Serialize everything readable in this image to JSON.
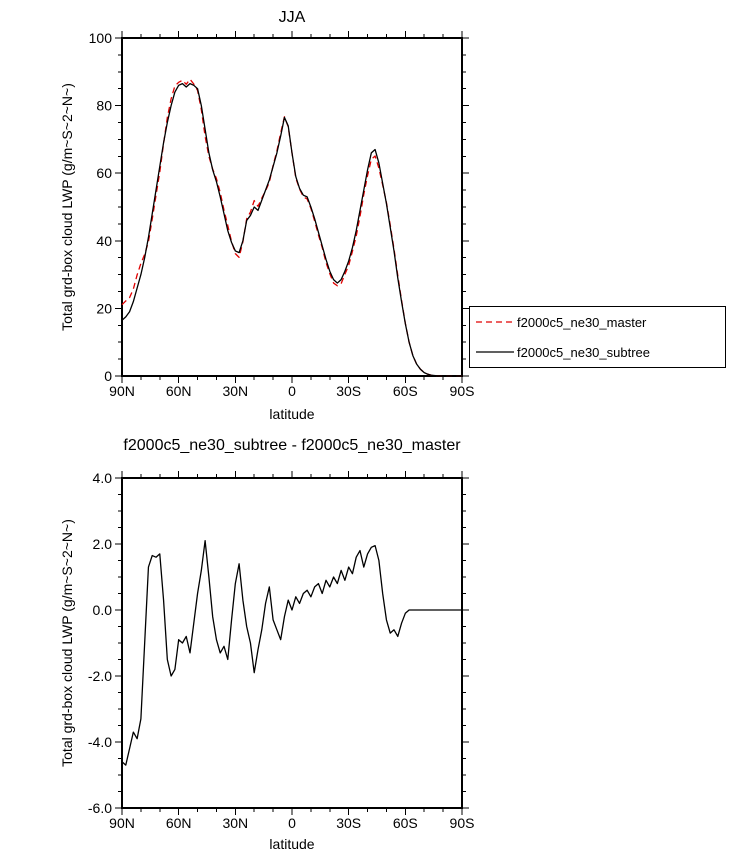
{
  "figure": {
    "background": "#ffffff",
    "season": "JJA"
  },
  "colors": {
    "master_line": "#e00000",
    "subtree_line": "#000000",
    "frame": "#000000"
  },
  "chart_data": [
    {
      "id": "lwp-by-latitude",
      "type": "line",
      "title": "JJA",
      "xlabel": "latitude",
      "ylabel": "Total grd-box cloud LWP (g/m~S~2~N~)",
      "xlim": [
        90,
        -90
      ],
      "ylim": [
        0,
        100
      ],
      "grid": false,
      "xticks": {
        "values": [
          90,
          60,
          30,
          0,
          -30,
          -60,
          -90
        ],
        "labels": [
          "90N",
          "60N",
          "30N",
          "0",
          "30S",
          "60S",
          "90S"
        ],
        "minor_step": 10
      },
      "yticks": {
        "values": [
          0,
          20,
          40,
          60,
          80,
          100
        ],
        "labels": [
          "0",
          "20",
          "40",
          "60",
          "80",
          "100"
        ],
        "minor_step": 5
      },
      "legend": {
        "show": true,
        "position": "outside-right-middle"
      },
      "x": [
        90,
        88,
        86,
        84,
        82,
        80,
        78,
        76,
        74,
        72,
        70,
        68,
        66,
        64,
        62,
        60,
        58,
        56,
        54,
        52,
        50,
        48,
        46,
        44,
        42,
        40,
        38,
        36,
        34,
        32,
        30,
        28,
        26,
        24,
        22,
        20,
        18,
        16,
        14,
        12,
        10,
        8,
        6,
        4,
        2,
        0,
        -2,
        -4,
        -6,
        -8,
        -10,
        -12,
        -14,
        -16,
        -18,
        -20,
        -22,
        -24,
        -26,
        -28,
        -30,
        -32,
        -34,
        -36,
        -38,
        -40,
        -42,
        -44,
        -46,
        -48,
        -50,
        -52,
        -54,
        -56,
        -58,
        -60,
        -62,
        -64,
        -66,
        -68,
        -70,
        -72,
        -74,
        -76,
        -78,
        -80,
        -82,
        -84,
        -86,
        -88,
        -90
      ],
      "series": [
        {
          "name": "f2000c5_ne30_master",
          "color": "#e00000",
          "style": "dashed",
          "values": [
            21.1,
            22.2,
            23.2,
            25.7,
            29.9,
            33.3,
            36.0,
            39.7,
            46.4,
            53.4,
            60.3,
            68.7,
            76.5,
            82.0,
            85.8,
            86.9,
            87.5,
            86.3,
            87.8,
            86.4,
            84.5,
            78.8,
            70.9,
            65.0,
            61.2,
            58.4,
            54.3,
            49.1,
            44.5,
            39.8,
            36.2,
            35.1,
            39.7,
            46.5,
            48.5,
            51.9,
            50.2,
            52.6,
            54.8,
            57.3,
            62.3,
            66.6,
            71.9,
            76.7,
            73.7,
            66.0,
            58.6,
            55.3,
            53.0,
            52.4,
            49.6,
            45.8,
            41.7,
            38.0,
            33.6,
            30.3,
            27.5,
            26.7,
            27.3,
            30.1,
            32.7,
            36.9,
            41.4,
            47.2,
            53.7,
            59.3,
            64.1,
            65.1,
            61.5,
            56.5,
            51.3,
            44.7,
            37.6,
            29.8,
            22.4,
            15.6,
            10,
            6,
            3.5,
            2,
            1,
            0.5,
            0.2,
            0.1,
            0,
            0,
            0,
            0,
            0,
            0,
            0
          ]
        },
        {
          "name": "f2000c5_ne30_subtree",
          "color": "#000000",
          "style": "solid",
          "values": [
            16.5,
            17.5,
            19,
            22,
            26,
            30,
            35,
            41,
            48,
            55,
            62,
            69,
            75,
            80,
            84,
            86,
            86.5,
            85.5,
            86.5,
            86,
            85,
            80,
            73,
            66,
            61,
            57.5,
            53,
            48,
            43,
            39.5,
            37,
            36.5,
            40,
            46,
            47.5,
            50,
            49,
            52,
            55,
            58,
            62,
            66,
            71,
            76.5,
            74,
            66,
            59,
            55.5,
            53.5,
            53,
            50,
            46.5,
            42.5,
            38.5,
            34.5,
            31,
            28.5,
            27.5,
            28.5,
            31,
            34,
            38,
            43,
            49,
            55,
            61,
            66,
            67,
            63,
            57,
            51,
            44,
            37,
            29,
            22,
            15.5,
            10,
            6,
            3.5,
            2,
            1,
            0.5,
            0.2,
            0.1,
            0,
            0,
            0,
            0,
            0,
            0,
            0
          ]
        }
      ]
    },
    {
      "id": "lwp-difference-by-latitude",
      "type": "line",
      "title": "f2000c5_ne30_subtree - f2000c5_ne30_master",
      "xlabel": "latitude",
      "ylabel": "Total grd-box cloud LWP (g/m~S~2~N~)",
      "xlim": [
        90,
        -90
      ],
      "ylim": [
        -6.0,
        4.0
      ],
      "grid": false,
      "xticks": {
        "values": [
          90,
          60,
          30,
          0,
          -30,
          -60,
          -90
        ],
        "labels": [
          "90N",
          "60N",
          "30N",
          "0",
          "30S",
          "60S",
          "90S"
        ],
        "minor_step": 10
      },
      "yticks": {
        "values": [
          -6,
          -4,
          -2,
          0,
          2,
          4
        ],
        "labels": [
          "-6.0",
          "-4.0",
          "-2.0",
          "0.0",
          "2.0",
          "4.0"
        ],
        "minor_step": 0.5
      },
      "legend": {
        "show": false
      },
      "x": [
        90,
        88,
        86,
        84,
        82,
        80,
        78,
        76,
        74,
        72,
        70,
        68,
        66,
        64,
        62,
        60,
        58,
        56,
        54,
        52,
        50,
        48,
        46,
        44,
        42,
        40,
        38,
        36,
        34,
        32,
        30,
        28,
        26,
        24,
        22,
        20,
        18,
        16,
        14,
        12,
        10,
        8,
        6,
        4,
        2,
        0,
        -2,
        -4,
        -6,
        -8,
        -10,
        -12,
        -14,
        -16,
        -18,
        -20,
        -22,
        -24,
        -26,
        -28,
        -30,
        -32,
        -34,
        -36,
        -38,
        -40,
        -42,
        -44,
        -46,
        -48,
        -50,
        -52,
        -54,
        -56,
        -58,
        -60,
        -62,
        -64,
        -66,
        -68,
        -70,
        -72,
        -74,
        -76,
        -78,
        -80,
        -82,
        -84,
        -86,
        -88,
        -90
      ],
      "series": [
        {
          "name": "f2000c5_ne30_subtree - f2000c5_ne30_master",
          "color": "#000000",
          "style": "solid",
          "values": [
            -4.6,
            -4.7,
            -4.2,
            -3.7,
            -3.9,
            -3.3,
            -1.0,
            1.3,
            1.65,
            1.6,
            1.7,
            0.3,
            -1.5,
            -2.0,
            -1.8,
            -0.9,
            -1.0,
            -0.8,
            -1.3,
            -0.4,
            0.5,
            1.2,
            2.1,
            1.0,
            -0.2,
            -0.9,
            -1.3,
            -1.1,
            -1.5,
            -0.3,
            0.8,
            1.4,
            0.3,
            -0.5,
            -1.0,
            -1.9,
            -1.2,
            -0.6,
            0.2,
            0.7,
            -0.3,
            -0.6,
            -0.9,
            -0.2,
            0.3,
            0.0,
            0.4,
            0.2,
            0.5,
            0.6,
            0.4,
            0.7,
            0.8,
            0.5,
            0.9,
            0.7,
            1.0,
            0.8,
            1.2,
            0.9,
            1.3,
            1.1,
            1.6,
            1.8,
            1.3,
            1.7,
            1.9,
            1.95,
            1.5,
            0.5,
            -0.3,
            -0.7,
            -0.6,
            -0.8,
            -0.4,
            -0.1,
            0,
            0,
            0,
            0,
            0,
            0,
            0,
            0,
            0,
            0,
            0,
            0,
            0,
            0,
            0
          ]
        }
      ]
    }
  ]
}
